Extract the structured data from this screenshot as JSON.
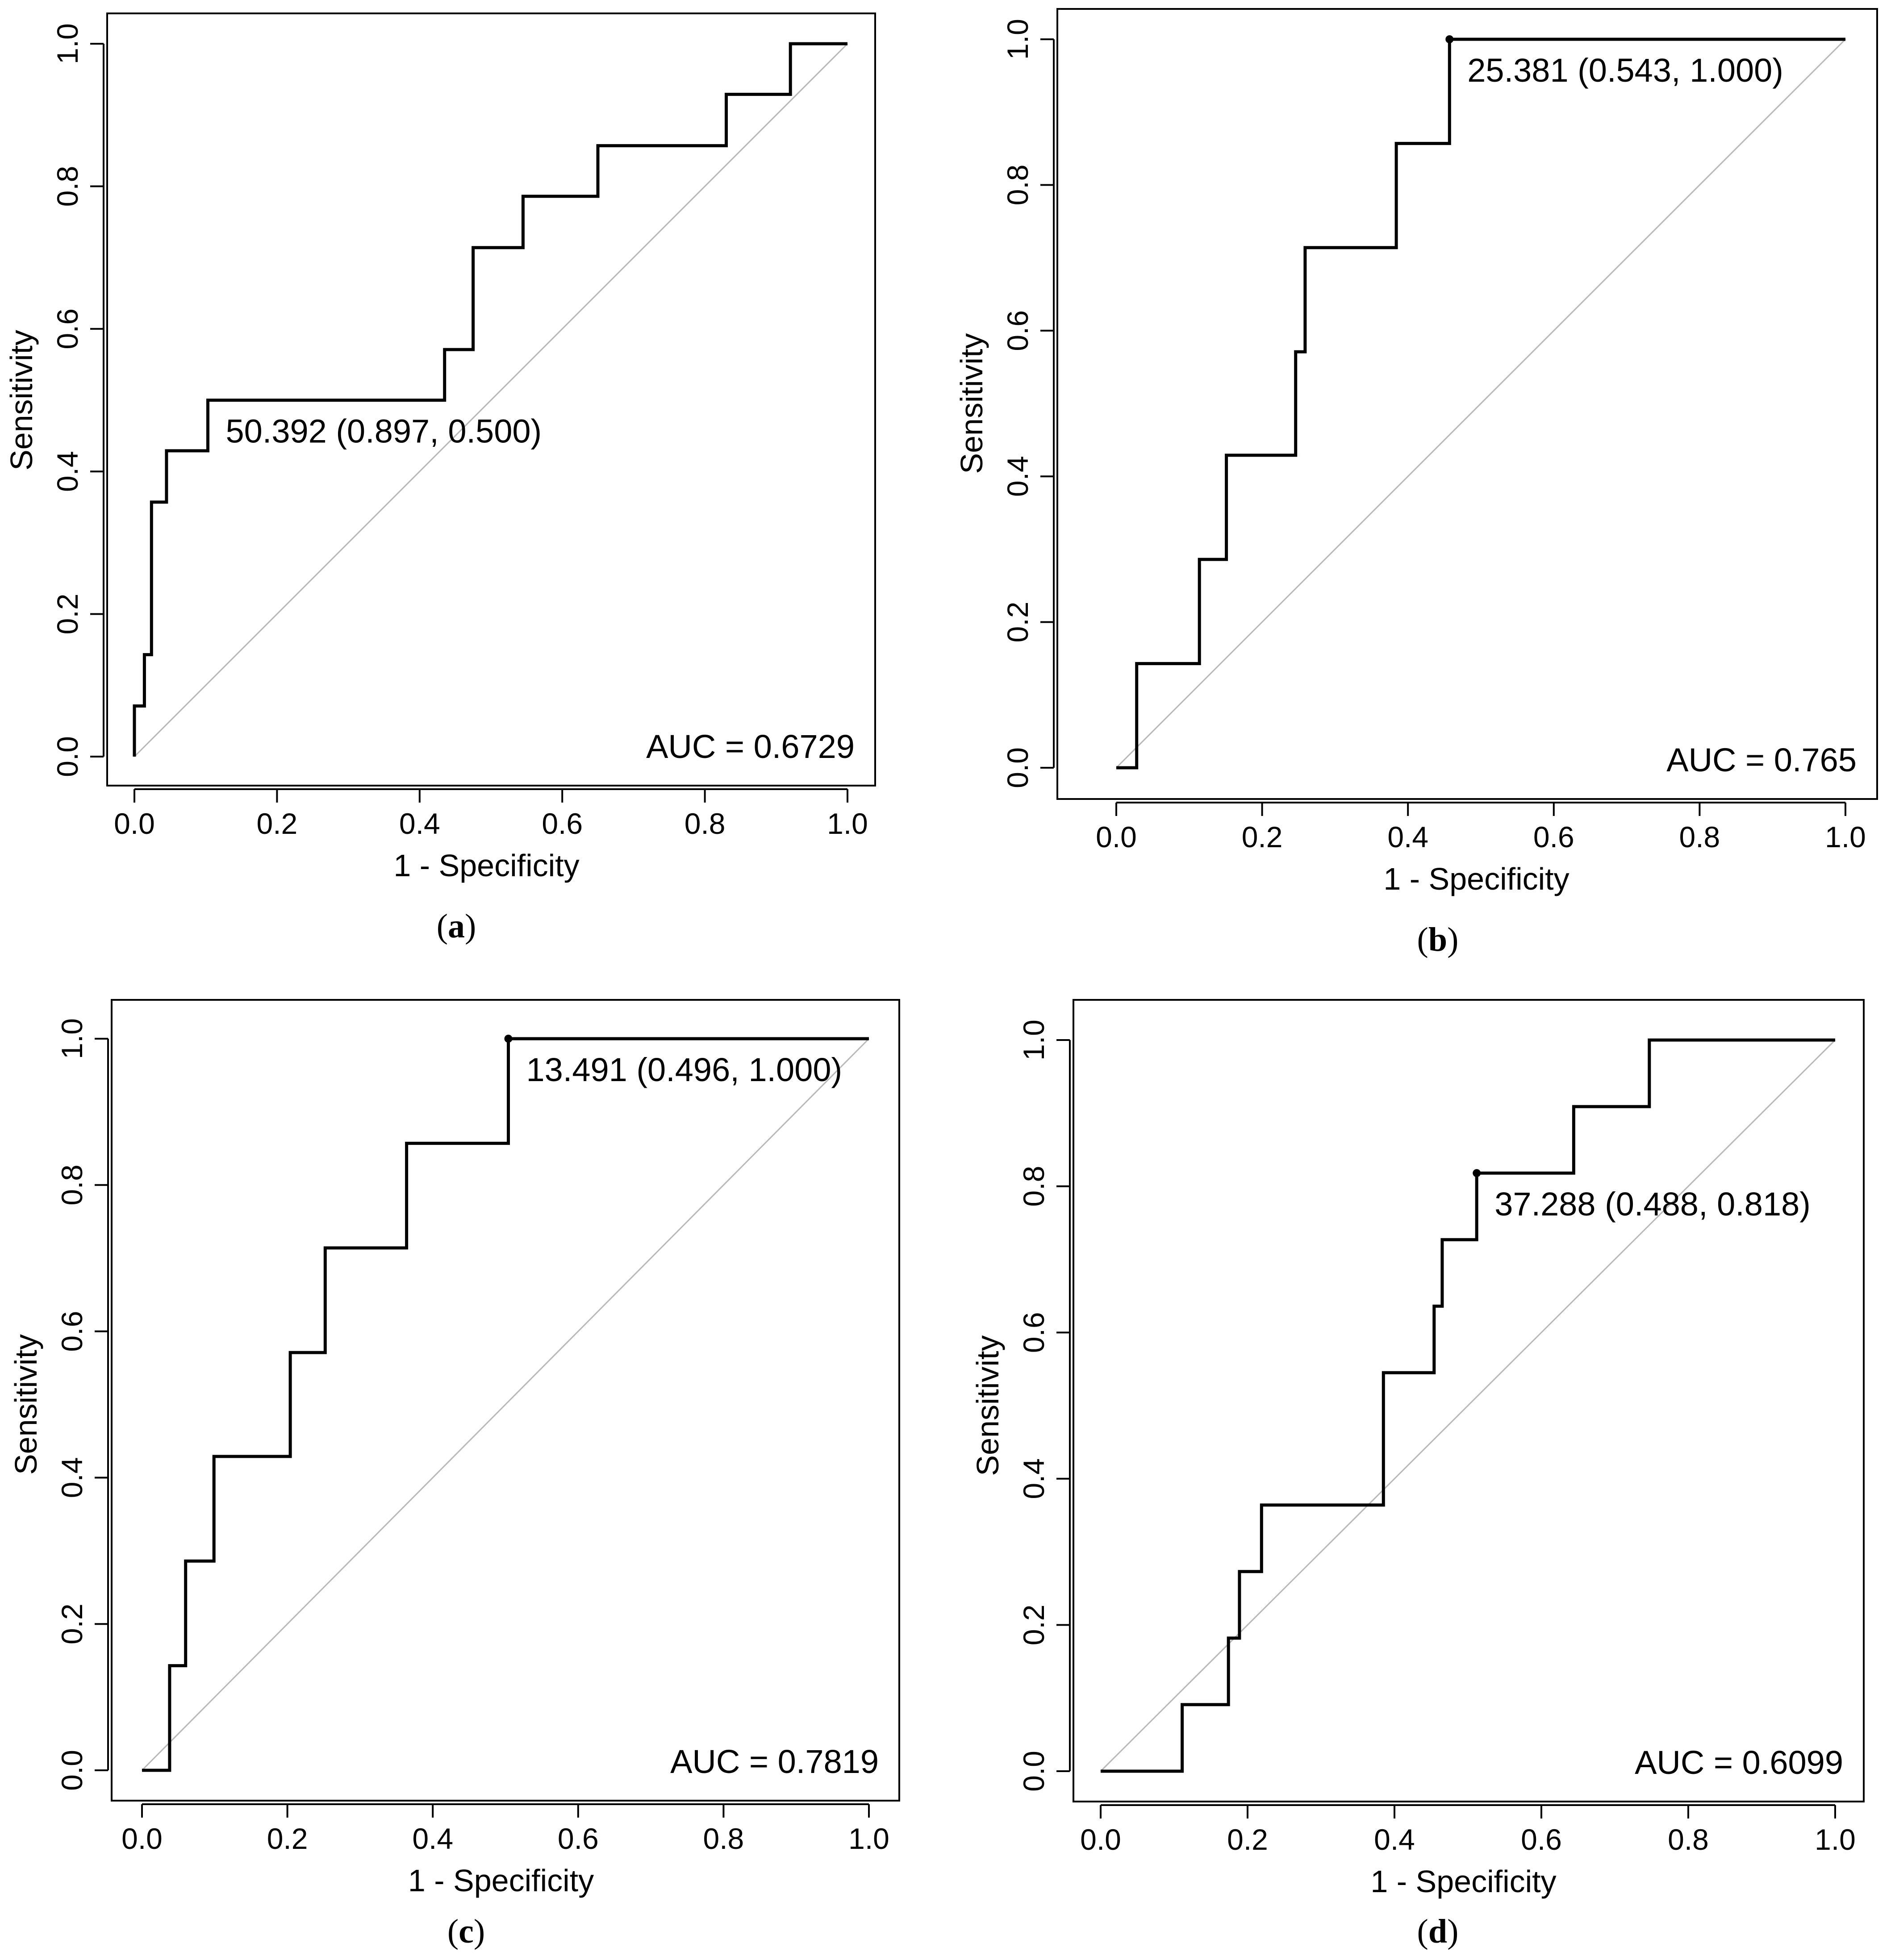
{
  "chart_data": [
    {
      "type": "line",
      "panel": "a",
      "caption_open": "(",
      "caption_letter": "a",
      "caption_close": ")",
      "xlabel": "1 - Specificity",
      "ylabel": "Sensitivity",
      "xlim": [
        0,
        1
      ],
      "ylim": [
        0,
        1
      ],
      "xticks": [
        "0.0",
        "0.2",
        "0.4",
        "0.6",
        "0.8",
        "1.0"
      ],
      "yticks": [
        "0.0",
        "0.2",
        "0.4",
        "0.6",
        "0.8",
        "1.0"
      ],
      "auc_text": "AUC = 0.6729",
      "threshold_text": "50.392 (0.897, 0.500)",
      "threshold_point": [
        0.103,
        0.5
      ],
      "threshold_marker": false,
      "roc_points": [
        [
          0,
          0
        ],
        [
          0,
          0.071
        ],
        [
          0.014,
          0.071
        ],
        [
          0.014,
          0.143
        ],
        [
          0.024,
          0.143
        ],
        [
          0.024,
          0.357
        ],
        [
          0.045,
          0.357
        ],
        [
          0.045,
          0.429
        ],
        [
          0.103,
          0.429
        ],
        [
          0.103,
          0.5
        ],
        [
          0.435,
          0.5
        ],
        [
          0.435,
          0.571
        ],
        [
          0.475,
          0.571
        ],
        [
          0.475,
          0.714
        ],
        [
          0.545,
          0.714
        ],
        [
          0.545,
          0.786
        ],
        [
          0.65,
          0.786
        ],
        [
          0.65,
          0.857
        ],
        [
          0.83,
          0.857
        ],
        [
          0.83,
          0.929
        ],
        [
          0.92,
          0.929
        ],
        [
          0.92,
          1.0
        ],
        [
          1.0,
          1.0
        ]
      ]
    },
    {
      "type": "line",
      "panel": "b",
      "caption_open": "(",
      "caption_letter": "b",
      "caption_close": ")",
      "xlabel": "1 - Specificity",
      "ylabel": "Sensitivity",
      "xlim": [
        0,
        1
      ],
      "ylim": [
        0,
        1
      ],
      "xticks": [
        "0.0",
        "0.2",
        "0.4",
        "0.6",
        "0.8",
        "1.0"
      ],
      "yticks": [
        "0.0",
        "0.2",
        "0.4",
        "0.6",
        "0.8",
        "1.0"
      ],
      "auc_text": "AUC = 0.765",
      "threshold_text": "25.381 (0.543, 1.000)",
      "threshold_point": [
        0.457,
        1.0
      ],
      "threshold_marker": true,
      "roc_points": [
        [
          0,
          0
        ],
        [
          0.028,
          0
        ],
        [
          0.028,
          0.143
        ],
        [
          0.114,
          0.143
        ],
        [
          0.114,
          0.286
        ],
        [
          0.151,
          0.286
        ],
        [
          0.151,
          0.429
        ],
        [
          0.246,
          0.429
        ],
        [
          0.246,
          0.571
        ],
        [
          0.259,
          0.571
        ],
        [
          0.259,
          0.714
        ],
        [
          0.384,
          0.714
        ],
        [
          0.384,
          0.857
        ],
        [
          0.457,
          0.857
        ],
        [
          0.457,
          1.0
        ],
        [
          1.0,
          1.0
        ]
      ]
    },
    {
      "type": "line",
      "panel": "c",
      "caption_open": "(",
      "caption_letter": "c",
      "caption_close": ")",
      "xlabel": "1 - Specificity",
      "ylabel": "Sensitivity",
      "xlim": [
        0,
        1
      ],
      "ylim": [
        0,
        1
      ],
      "xticks": [
        "0.0",
        "0.2",
        "0.4",
        "0.6",
        "0.8",
        "1.0"
      ],
      "yticks": [
        "0.0",
        "0.2",
        "0.4",
        "0.6",
        "0.8",
        "1.0"
      ],
      "auc_text": "AUC = 0.7819",
      "threshold_text": "13.491 (0.496, 1.000)",
      "threshold_point": [
        0.504,
        1.0
      ],
      "threshold_marker": true,
      "roc_points": [
        [
          0,
          0
        ],
        [
          0.038,
          0
        ],
        [
          0.038,
          0.143
        ],
        [
          0.06,
          0.143
        ],
        [
          0.06,
          0.286
        ],
        [
          0.099,
          0.286
        ],
        [
          0.099,
          0.429
        ],
        [
          0.204,
          0.429
        ],
        [
          0.204,
          0.571
        ],
        [
          0.252,
          0.571
        ],
        [
          0.252,
          0.714
        ],
        [
          0.364,
          0.714
        ],
        [
          0.364,
          0.857
        ],
        [
          0.504,
          0.857
        ],
        [
          0.504,
          1.0
        ],
        [
          1.0,
          1.0
        ]
      ]
    },
    {
      "type": "line",
      "panel": "d",
      "caption_open": "(",
      "caption_letter": "d",
      "caption_close": ")",
      "xlabel": "1 - Specificity",
      "ylabel": "Sensitivity",
      "xlim": [
        0,
        1
      ],
      "ylim": [
        0,
        1
      ],
      "xticks": [
        "0.0",
        "0.2",
        "0.4",
        "0.6",
        "0.8",
        "1.0"
      ],
      "yticks": [
        "0.0",
        "0.2",
        "0.4",
        "0.6",
        "0.8",
        "1.0"
      ],
      "auc_text": "AUC = 0.6099",
      "threshold_text": "37.288 (0.488, 0.818)",
      "threshold_point": [
        0.512,
        0.818
      ],
      "threshold_marker": true,
      "roc_points": [
        [
          0,
          0
        ],
        [
          0.111,
          0
        ],
        [
          0.111,
          0.091
        ],
        [
          0.174,
          0.091
        ],
        [
          0.174,
          0.182
        ],
        [
          0.189,
          0.182
        ],
        [
          0.189,
          0.273
        ],
        [
          0.219,
          0.273
        ],
        [
          0.219,
          0.364
        ],
        [
          0.385,
          0.364
        ],
        [
          0.385,
          0.545
        ],
        [
          0.454,
          0.545
        ],
        [
          0.454,
          0.636
        ],
        [
          0.465,
          0.636
        ],
        [
          0.465,
          0.727
        ],
        [
          0.512,
          0.727
        ],
        [
          0.512,
          0.818
        ],
        [
          0.644,
          0.818
        ],
        [
          0.644,
          0.909
        ],
        [
          0.747,
          0.909
        ],
        [
          0.747,
          1.0
        ],
        [
          1.0,
          1.0
        ]
      ]
    }
  ]
}
